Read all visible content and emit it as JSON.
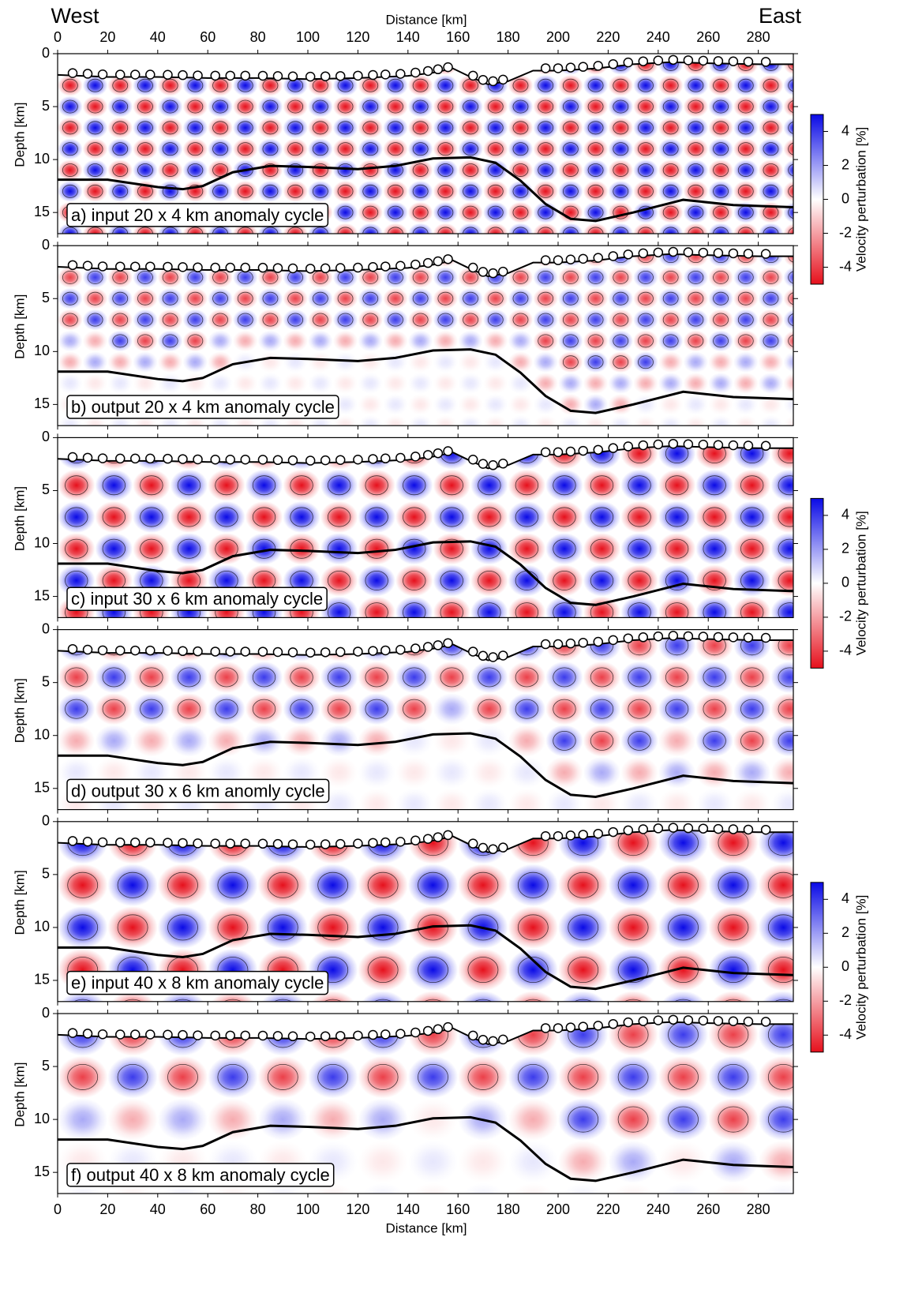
{
  "chart_data": {
    "type": "checkerboard-sections",
    "title_left": "West",
    "title_right": "East",
    "x_label": "Distance [km]",
    "y_label": "Depth [km]",
    "xlim": [
      0,
      294
    ],
    "xticks": [
      0,
      20,
      40,
      60,
      80,
      100,
      120,
      140,
      160,
      180,
      200,
      220,
      240,
      260,
      280
    ],
    "ylim": [
      0,
      17
    ],
    "yticks": [
      0,
      5,
      10,
      15
    ],
    "panels": [
      {
        "label": "a) input 20 x 4 km anomaly cycle",
        "kind": "input",
        "cycle": [
          20,
          4
        ]
      },
      {
        "label": "b) output 20 x 4 km anomaly cycle",
        "kind": "output",
        "cycle": [
          20,
          4
        ]
      },
      {
        "label": "c) input 30 x 6 km anomaly cycle",
        "kind": "input",
        "cycle": [
          30,
          6
        ]
      },
      {
        "label": "d) output 30 x 6 km anomly cycle",
        "kind": "output",
        "cycle": [
          30,
          6
        ]
      },
      {
        "label": "e) input 40 x 8 km anomaly cycle",
        "kind": "input",
        "cycle": [
          40,
          8
        ]
      },
      {
        "label": "f) output 40 x 8 km anomaly cycle",
        "kind": "output",
        "cycle": [
          40,
          8
        ]
      }
    ],
    "topography": {
      "x": [
        0,
        20,
        40,
        60,
        80,
        100,
        120,
        140,
        150,
        158,
        165,
        172,
        180,
        190,
        200,
        215,
        230,
        245,
        260,
        280,
        294
      ],
      "depth": [
        2.0,
        2.2,
        2.2,
        2.3,
        2.3,
        2.4,
        2.3,
        2.1,
        1.8,
        1.4,
        2.2,
        2.9,
        2.6,
        1.6,
        1.6,
        1.4,
        1.0,
        0.8,
        0.9,
        1.0,
        1.0
      ]
    },
    "moho": {
      "x": [
        0,
        20,
        40,
        50,
        58,
        70,
        85,
        100,
        120,
        135,
        150,
        165,
        175,
        185,
        195,
        205,
        215,
        230,
        250,
        270,
        294
      ],
      "depth": [
        11.9,
        11.9,
        12.6,
        12.8,
        12.5,
        11.2,
        10.6,
        10.7,
        10.9,
        10.6,
        9.9,
        9.8,
        10.3,
        12.0,
        14.2,
        15.6,
        15.8,
        15.0,
        13.8,
        14.3,
        14.5
      ]
    },
    "stations": [
      6,
      12,
      18,
      25,
      31,
      37,
      44,
      50,
      56,
      63,
      69,
      75,
      82,
      88,
      94,
      101,
      107,
      113,
      120,
      126,
      131,
      137,
      143,
      148,
      152,
      156,
      166,
      170,
      174,
      178,
      195,
      200,
      205,
      210,
      216,
      222,
      228,
      234,
      240,
      246,
      252,
      258,
      264,
      270,
      276,
      283
    ],
    "colorbar": {
      "label": "Velocity perturbation [%]",
      "lim": [
        -5,
        5
      ],
      "ticks": [
        4,
        2,
        0,
        -2,
        -4
      ],
      "positive_color": "#0a0ae6",
      "negative_color": "#e6101c"
    }
  }
}
